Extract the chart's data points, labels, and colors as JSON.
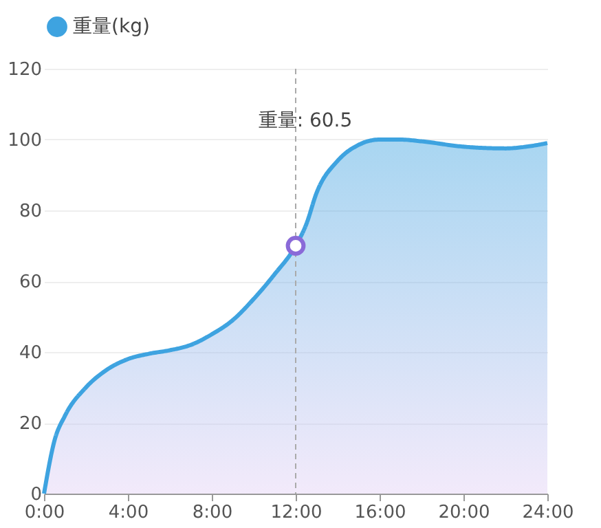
{
  "chart_data": {
    "type": "area",
    "legend": "top",
    "grid": "y",
    "marker": "none",
    "line_style": "solid",
    "x": [
      0,
      0.5,
      1,
      2,
      3,
      4,
      5,
      6,
      7,
      8,
      9,
      10,
      11,
      12,
      12.5,
      13,
      14,
      15,
      16,
      17,
      18,
      20,
      22,
      23,
      24
    ],
    "series": [
      {
        "name": "重量(kg)",
        "color": "#3ea3e0",
        "values": [
          0,
          15,
          22,
          30,
          35,
          38,
          39.5,
          40.5,
          42,
          45,
          49,
          55,
          62,
          70,
          76,
          85,
          94,
          98.5,
          100,
          100,
          99.5,
          98,
          97.5,
          98,
          99
        ]
      }
    ],
    "xlim": [
      0,
      24
    ],
    "xticks": [
      {
        "value": 0,
        "label": "0:00"
      },
      {
        "value": 4,
        "label": "4:00"
      },
      {
        "value": 8,
        "label": "8:00"
      },
      {
        "value": 12,
        "label": "12:00"
      },
      {
        "value": 16,
        "label": "16:00"
      },
      {
        "value": 20,
        "label": "20:00"
      },
      {
        "value": 24,
        "label": "24:00"
      }
    ],
    "ylim": [
      0,
      120
    ],
    "yticks": [
      0,
      20,
      40,
      60,
      80,
      100,
      120
    ],
    "ref_lines": [
      {
        "axis": "x",
        "value": 12,
        "label": null,
        "line_style": "dashed",
        "color": "#aaaaaa"
      }
    ],
    "annotations": [
      "重量: 60.5"
    ]
  }
}
